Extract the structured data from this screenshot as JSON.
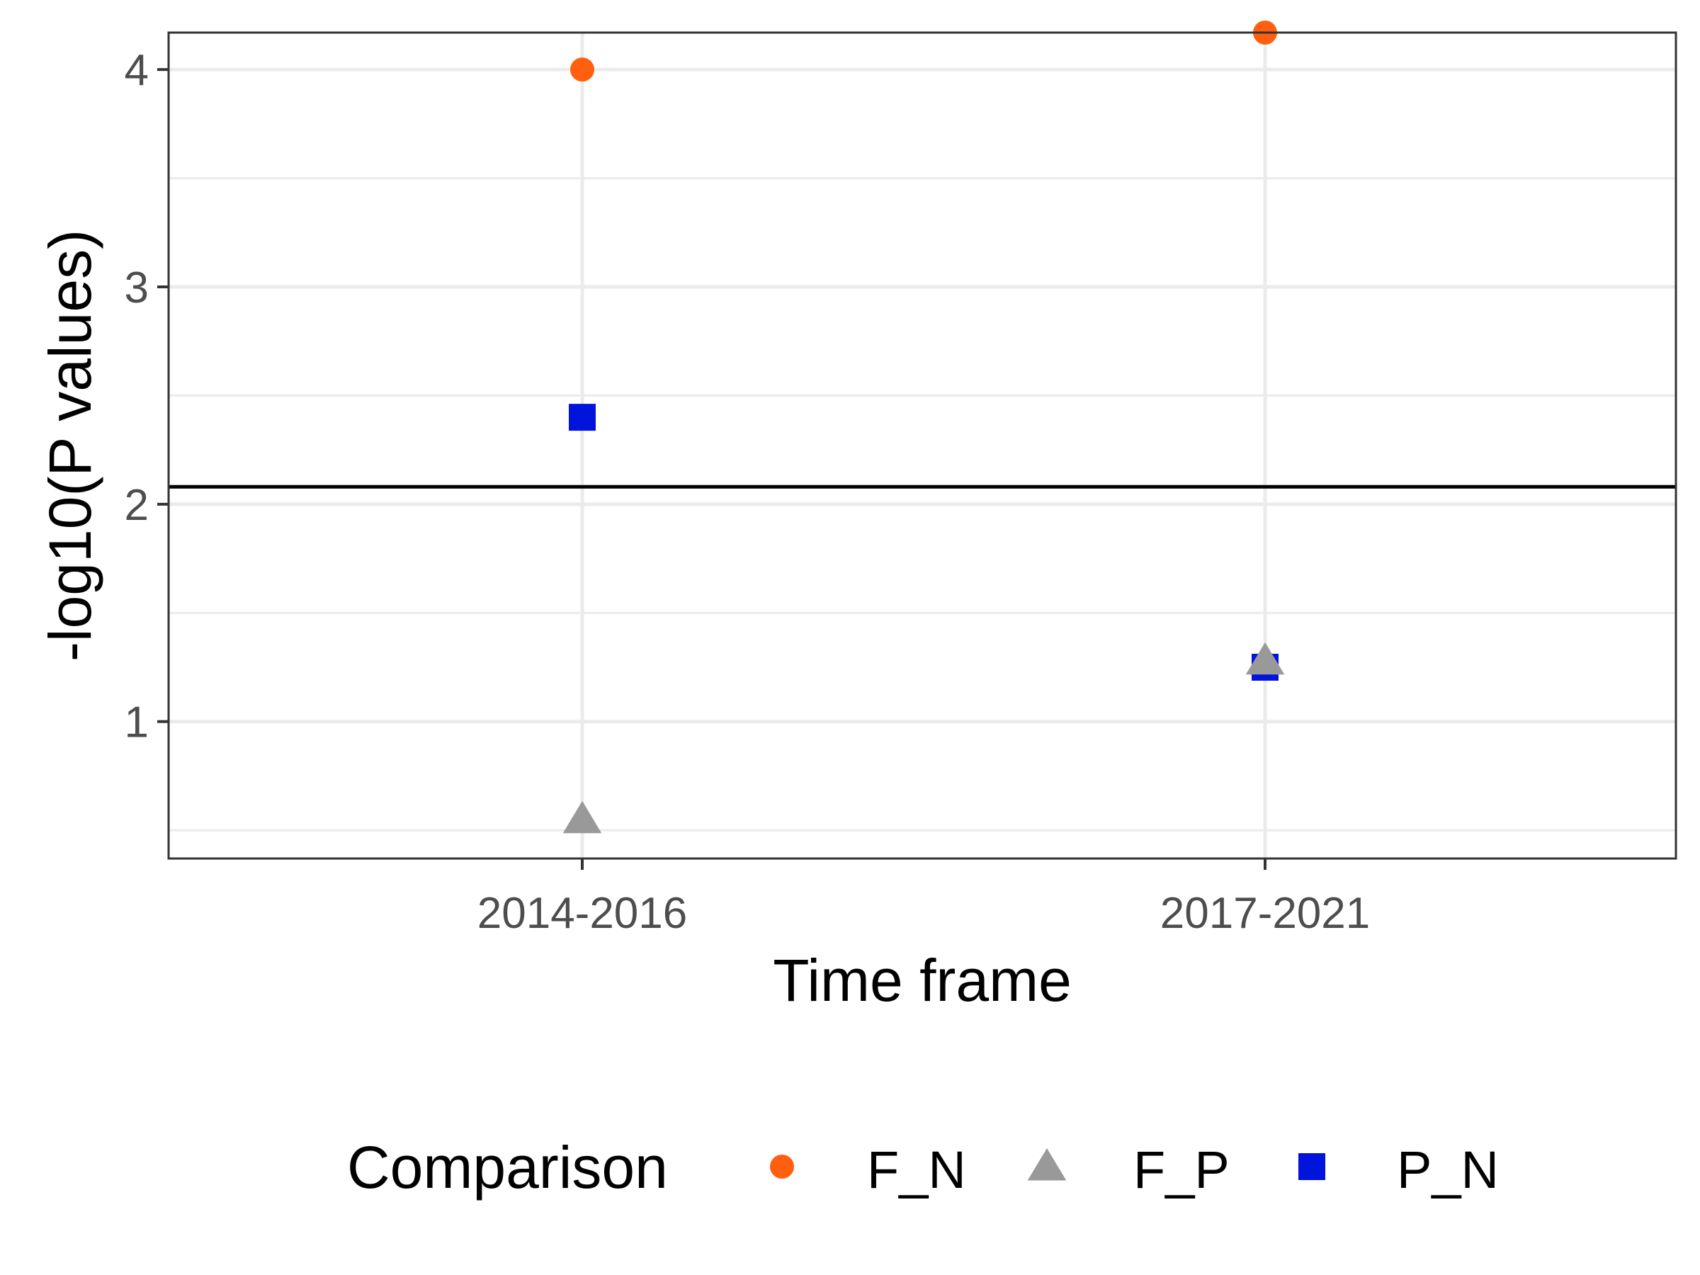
{
  "chart_data": {
    "type": "scatter",
    "xlabel": "Time frame",
    "ylabel": "-log10(P values)",
    "categories": [
      "2014-2016",
      "2017-2021"
    ],
    "ylim": [
      0.37,
      4.17
    ],
    "yticks": [
      1,
      2,
      3,
      4
    ],
    "y_minor_ticks": [
      0.5,
      1.5,
      2.5,
      3.5
    ],
    "grid": true,
    "reference_line": {
      "y": 2.08,
      "color": "#000000"
    },
    "series": [
      {
        "name": "F_N",
        "shape": "circle",
        "color": "#ff5f0f",
        "values": [
          4.0,
          4.17
        ]
      },
      {
        "name": "F_P",
        "shape": "triangle",
        "color": "#999999",
        "values": [
          0.55,
          1.28
        ]
      },
      {
        "name": "P_N",
        "shape": "square",
        "color": "#0014dc",
        "values": [
          2.4,
          1.25
        ]
      }
    ],
    "legend": {
      "title": "Comparison",
      "position": "bottom"
    }
  }
}
